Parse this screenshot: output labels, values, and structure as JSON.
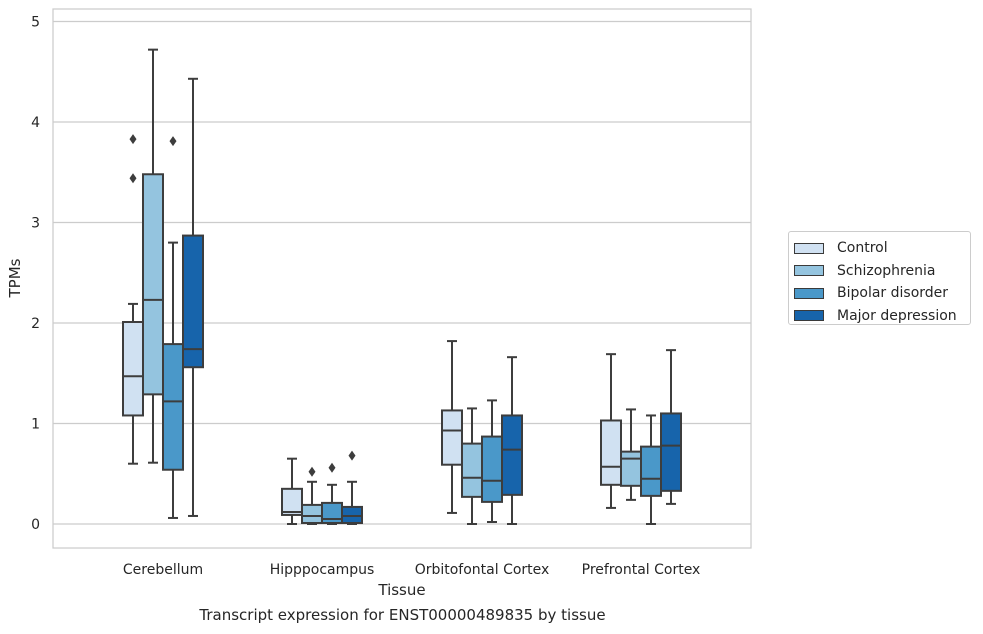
{
  "chart_data": {
    "type": "box",
    "title": "Transcript expression for ENST00000489835 by tissue",
    "xlabel": "Tissue",
    "ylabel": "TPMs",
    "ylim": [
      -0.23,
      5.13
    ],
    "yticks": [
      0,
      1,
      2,
      3,
      4,
      5
    ],
    "grid": "horizontal",
    "legend_position": "right",
    "categories": [
      "Cerebellum",
      "Hipppocampus",
      "Orbitofontal Cortex",
      "Prefrontal Cortex"
    ],
    "series": [
      {
        "name": "Control",
        "color": "#d0e1f2",
        "boxes": [
          {
            "whislo": 0.6,
            "q1": 1.08,
            "med": 1.47,
            "q3": 2.01,
            "whishi": 2.19,
            "fliers": [
              3.44,
              3.83
            ]
          },
          {
            "whislo": 0.0,
            "q1": 0.09,
            "med": 0.12,
            "q3": 0.35,
            "whishi": 0.65,
            "fliers": []
          },
          {
            "whislo": 0.11,
            "q1": 0.59,
            "med": 0.93,
            "q3": 1.13,
            "whishi": 1.82,
            "fliers": []
          },
          {
            "whislo": 0.16,
            "q1": 0.39,
            "med": 0.57,
            "q3": 1.03,
            "whishi": 1.69,
            "fliers": []
          }
        ]
      },
      {
        "name": "Schizophrenia",
        "color": "#94c4df",
        "boxes": [
          {
            "whislo": 0.61,
            "q1": 1.29,
            "med": 2.23,
            "q3": 3.48,
            "whishi": 4.72,
            "fliers": []
          },
          {
            "whislo": 0.0,
            "q1": 0.01,
            "med": 0.08,
            "q3": 0.19,
            "whishi": 0.42,
            "fliers": [
              0.52
            ]
          },
          {
            "whislo": 0.0,
            "q1": 0.27,
            "med": 0.46,
            "q3": 0.8,
            "whishi": 1.15,
            "fliers": []
          },
          {
            "whislo": 0.24,
            "q1": 0.38,
            "med": 0.65,
            "q3": 0.72,
            "whishi": 1.14,
            "fliers": []
          }
        ]
      },
      {
        "name": "Bipolar disorder",
        "color": "#4a98c9",
        "boxes": [
          {
            "whislo": 0.06,
            "q1": 0.54,
            "med": 1.22,
            "q3": 1.79,
            "whishi": 2.8,
            "fliers": [
              3.81
            ]
          },
          {
            "whislo": 0.0,
            "q1": 0.01,
            "med": 0.05,
            "q3": 0.21,
            "whishi": 0.39,
            "fliers": [
              0.56
            ]
          },
          {
            "whislo": 0.02,
            "q1": 0.22,
            "med": 0.43,
            "q3": 0.87,
            "whishi": 1.23,
            "fliers": []
          },
          {
            "whislo": 0.0,
            "q1": 0.28,
            "med": 0.45,
            "q3": 0.77,
            "whishi": 1.08,
            "fliers": []
          }
        ]
      },
      {
        "name": "Major depression",
        "color": "#1764ab",
        "boxes": [
          {
            "whislo": 0.08,
            "q1": 1.56,
            "med": 1.74,
            "q3": 2.87,
            "whishi": 4.43,
            "fliers": []
          },
          {
            "whislo": 0.0,
            "q1": 0.01,
            "med": 0.08,
            "q3": 0.17,
            "whishi": 0.42,
            "fliers": [
              0.68
            ]
          },
          {
            "whislo": 0.0,
            "q1": 0.29,
            "med": 0.74,
            "q3": 1.08,
            "whishi": 1.66,
            "fliers": []
          },
          {
            "whislo": 0.2,
            "q1": 0.33,
            "med": 0.78,
            "q3": 1.1,
            "whishi": 1.73,
            "fliers": []
          }
        ]
      }
    ]
  }
}
